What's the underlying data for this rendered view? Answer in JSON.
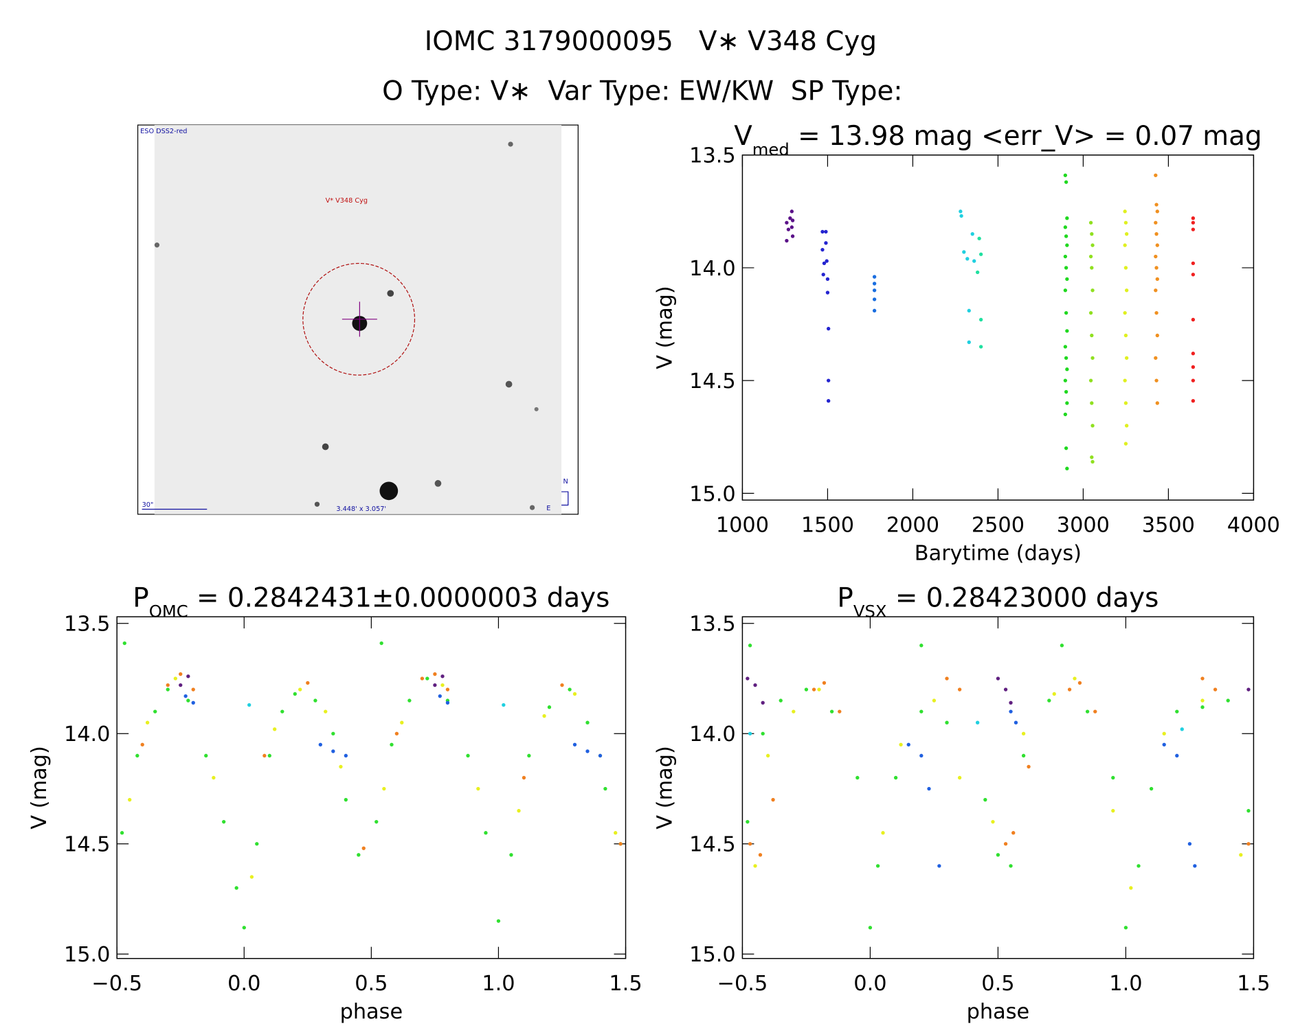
{
  "title": "IOMC 3179000095   V∗ V348 Cyg",
  "subtitle": "O Type: V∗  Var Type: EW/KW  SP Type:",
  "image": {
    "survey": "ESO DSS2-red",
    "target": "V* V348 Cyg",
    "scale": "30\"",
    "size": "3.448' x 3.057'",
    "north": "N",
    "east": "E"
  },
  "chart_data": [
    {
      "type": "scatter",
      "title_parts": [
        "V",
        "med",
        " = 13.98 mag <err_V> = 0.07 mag"
      ],
      "xlabel": "Barytime (days)",
      "ylabel": "V (mag)",
      "xlim": [
        1000,
        4000
      ],
      "ylim": [
        15.03,
        13.5
      ],
      "xticks": [
        1000,
        1500,
        2000,
        2500,
        3000,
        3500,
        4000
      ],
      "yticks": [
        13.5,
        {
          "value": 14,
          "label": "14.0"
        },
        14.5,
        {
          "value": 15,
          "label": "15.0"
        }
      ],
      "series": [
        {
          "color": "#5a1088",
          "x": [
            1260,
            1260,
            1270,
            1280,
            1290,
            1290,
            1295,
            1295
          ],
          "values": [
            13.8,
            13.88,
            13.83,
            13.78,
            13.75,
            13.82,
            13.86,
            13.79
          ]
        },
        {
          "color": "#2424d0",
          "x": [
            1470,
            1470,
            1475,
            1480,
            1490,
            1490,
            1495,
            1500,
            1500,
            1505,
            1505,
            1505
          ],
          "values": [
            13.84,
            13.92,
            14.03,
            13.98,
            13.84,
            13.89,
            13.97,
            14.05,
            14.11,
            14.27,
            14.5,
            14.59
          ]
        },
        {
          "color": "#1a6ee0",
          "x": [
            1775,
            1775,
            1775,
            1775,
            1775
          ],
          "values": [
            14.04,
            14.07,
            14.1,
            14.14,
            14.19
          ]
        },
        {
          "color": "#20d0e0",
          "x": [
            2280,
            2285,
            2300,
            2320,
            2330,
            2330,
            2350,
            2360
          ],
          "values": [
            13.75,
            13.77,
            13.93,
            13.96,
            14.19,
            14.33,
            13.85,
            13.97
          ]
        },
        {
          "color": "#20e0a0",
          "x": [
            2380,
            2390,
            2400,
            2400,
            2400
          ],
          "values": [
            14.02,
            13.87,
            13.94,
            14.23,
            14.35
          ]
        },
        {
          "color": "#20d820",
          "x": [
            2895,
            2900,
            2905,
            2895,
            2900,
            2905,
            2895,
            2900,
            2905,
            2895,
            2900,
            2905,
            2895,
            2900,
            2905,
            2895,
            2900,
            2905,
            2895,
            2900,
            2905
          ],
          "values": [
            13.59,
            13.62,
            13.78,
            13.82,
            13.86,
            13.9,
            13.95,
            14.0,
            14.05,
            14.1,
            14.2,
            14.28,
            14.35,
            14.4,
            14.45,
            14.5,
            14.55,
            14.6,
            14.65,
            14.8,
            14.89
          ]
        },
        {
          "color": "#90e020",
          "x": [
            3045,
            3050,
            3055,
            3045,
            3050,
            3055,
            3045,
            3050,
            3055,
            3045,
            3050,
            3055,
            3050,
            3055
          ],
          "values": [
            13.8,
            13.85,
            13.9,
            13.95,
            14.0,
            14.1,
            14.2,
            14.3,
            14.4,
            14.5,
            14.6,
            14.7,
            14.84,
            14.86
          ]
        },
        {
          "color": "#e0f020",
          "x": [
            3245,
            3250,
            3255,
            3245,
            3250,
            3255,
            3245,
            3250,
            3255,
            3245,
            3250,
            3255,
            3250
          ],
          "values": [
            13.75,
            13.8,
            13.85,
            13.9,
            14.0,
            14.1,
            14.2,
            14.3,
            14.4,
            14.5,
            14.6,
            14.7,
            14.78
          ]
        },
        {
          "color": "#f09020",
          "x": [
            3425,
            3430,
            3435,
            3425,
            3430,
            3435,
            3425,
            3430,
            3435,
            3425,
            3430,
            3435,
            3425,
            3430,
            3435
          ],
          "values": [
            13.59,
            13.72,
            13.75,
            13.8,
            13.85,
            13.9,
            13.95,
            14.0,
            14.05,
            14.1,
            14.2,
            14.3,
            14.4,
            14.5,
            14.6
          ]
        },
        {
          "color": "#f02020",
          "x": [
            3645,
            3645,
            3645,
            3645,
            3645,
            3645,
            3645,
            3645,
            3645,
            3645
          ],
          "values": [
            13.78,
            13.8,
            13.83,
            13.98,
            14.03,
            14.23,
            14.38,
            14.44,
            14.5,
            14.59
          ]
        }
      ]
    },
    {
      "type": "scatter",
      "title_parts": [
        "P",
        "OMC",
        " = 0.2842431±0.0000003 days"
      ],
      "xlabel": "phase",
      "ylabel": "V (mag)",
      "xlim": [
        -0.5,
        1.5
      ],
      "ylim": [
        15.02,
        13.47
      ],
      "xticks": [
        {
          "value": -0.5,
          "label": "−0.5"
        },
        {
          "value": 0,
          "label": "0.0"
        },
        0.5,
        {
          "value": 1,
          "label": "1.0"
        },
        1.5
      ],
      "yticks": [
        13.5,
        {
          "value": 14,
          "label": "14.0"
        },
        14.5,
        {
          "value": 15,
          "label": "15.0"
        }
      ],
      "series": [
        {
          "color": "#30e030",
          "x": [
            -0.48,
            -0.42,
            -0.35,
            -0.3,
            -0.22,
            -0.15,
            -0.08,
            -0.03,
            0,
            0.05,
            0.1,
            0.15,
            0.2,
            0.28,
            0.35,
            0.4,
            0.45,
            0.52,
            0.58,
            0.65,
            0.72,
            0.8,
            0.88,
            0.95,
            1,
            1.05,
            1.12,
            1.2,
            1.28,
            1.35,
            1.42,
            1.48,
            -0.47,
            0.54
          ],
          "values": [
            14.45,
            14.1,
            13.9,
            13.8,
            13.85,
            14.1,
            14.4,
            14.7,
            14.88,
            14.5,
            14.1,
            13.9,
            13.82,
            13.85,
            14,
            14.3,
            14.55,
            14.4,
            14.05,
            13.85,
            13.75,
            13.85,
            14.1,
            14.45,
            14.85,
            14.55,
            14.1,
            13.88,
            13.8,
            13.95,
            14.25,
            14.5,
            13.59,
            13.59
          ]
        },
        {
          "color": "#e8f020",
          "x": [
            -0.45,
            -0.38,
            -0.27,
            -0.12,
            0.03,
            0.12,
            0.22,
            0.32,
            0.38,
            0.55,
            0.62,
            0.78,
            0.92,
            1.08,
            1.18,
            1.3,
            1.4,
            1.46
          ],
          "values": [
            14.3,
            13.95,
            13.75,
            14.2,
            14.65,
            13.98,
            13.8,
            13.9,
            14.15,
            14.25,
            13.95,
            13.78,
            14.25,
            14.35,
            13.92,
            13.82,
            14.1,
            14.45
          ]
        },
        {
          "color": "#f08020",
          "x": [
            -0.4,
            -0.3,
            -0.25,
            -0.2,
            0.08,
            0.25,
            0.47,
            0.6,
            0.7,
            0.75,
            0.8,
            1.1,
            1.25,
            1.48
          ],
          "values": [
            14.05,
            13.78,
            13.73,
            13.8,
            14.1,
            13.77,
            14.52,
            14,
            13.75,
            13.73,
            13.8,
            14.2,
            13.78,
            14.5
          ]
        },
        {
          "color": "#2060e0",
          "x": [
            -0.23,
            -0.2,
            0.3,
            0.35,
            0.4,
            0.77,
            0.8,
            1.3,
            1.35,
            1.4
          ],
          "values": [
            13.83,
            13.86,
            14.05,
            14.08,
            14.1,
            13.83,
            13.86,
            14.05,
            14.08,
            14.1
          ]
        },
        {
          "color": "#602080",
          "x": [
            -0.25,
            -0.22,
            0.75,
            0.78
          ],
          "values": [
            13.78,
            13.74,
            13.78,
            13.74
          ]
        },
        {
          "color": "#20d0e0",
          "x": [
            0.02,
            1.02
          ],
          "values": [
            13.87,
            13.87
          ]
        }
      ]
    },
    {
      "type": "scatter",
      "title_parts": [
        "P",
        "VSX",
        " = 0.28423000 days"
      ],
      "xlabel": "phase",
      "ylabel": "V (mag)",
      "xlim": [
        -0.5,
        1.5
      ],
      "ylim": [
        15.02,
        13.47
      ],
      "xticks": [
        {
          "value": -0.5,
          "label": "−0.5"
        },
        {
          "value": 0,
          "label": "0.0"
        },
        0.5,
        {
          "value": 1,
          "label": "1.0"
        },
        1.5
      ],
      "yticks": [
        13.5,
        {
          "value": 14,
          "label": "14.0"
        },
        14.5,
        {
          "value": 15,
          "label": "15.0"
        }
      ],
      "series": [
        {
          "color": "#30e030",
          "x": [
            -0.48,
            -0.42,
            -0.35,
            -0.25,
            -0.15,
            -0.05,
            0,
            0.03,
            0.1,
            0.2,
            0.3,
            0.45,
            0.5,
            0.55,
            0.6,
            0.7,
            0.75,
            0.85,
            0.95,
            1,
            1.05,
            1.1,
            1.2,
            1.3,
            1.4,
            1.48,
            -0.47,
            0.2
          ],
          "values": [
            14.4,
            14,
            13.85,
            13.8,
            13.9,
            14.2,
            14.88,
            14.6,
            14.2,
            13.9,
            13.95,
            14.3,
            14.55,
            14.6,
            14.1,
            13.85,
            13.6,
            13.9,
            14.2,
            14.88,
            14.6,
            14.25,
            13.9,
            13.88,
            13.85,
            14.35,
            13.6,
            13.6
          ]
        },
        {
          "color": "#e8f020",
          "x": [
            -0.45,
            -0.4,
            -0.3,
            -0.2,
            0.05,
            0.12,
            0.25,
            0.35,
            0.48,
            0.6,
            0.72,
            0.8,
            0.95,
            1.02,
            1.15,
            1.3,
            1.45
          ],
          "values": [
            14.6,
            14.1,
            13.9,
            13.8,
            14.45,
            14.05,
            13.85,
            14.2,
            14.4,
            14,
            13.82,
            13.75,
            14.35,
            14.7,
            14,
            13.85,
            14.55
          ]
        },
        {
          "color": "#f08020",
          "x": [
            -0.47,
            -0.43,
            -0.38,
            -0.22,
            -0.18,
            -0.12,
            0.3,
            0.35,
            0.53,
            0.56,
            0.62,
            0.78,
            0.82,
            0.88,
            1.3,
            1.35,
            1.48
          ],
          "values": [
            14.5,
            14.55,
            14.3,
            13.8,
            13.77,
            13.9,
            13.75,
            13.8,
            14.5,
            14.45,
            14.15,
            13.8,
            13.77,
            13.9,
            13.75,
            13.8,
            14.5
          ]
        },
        {
          "color": "#2060e0",
          "x": [
            0.15,
            0.2,
            0.23,
            0.27,
            0.55,
            0.57,
            1.15,
            1.2,
            1.25,
            1.27
          ],
          "values": [
            14.05,
            14.1,
            14.25,
            14.6,
            13.9,
            13.95,
            14.05,
            14.1,
            14.5,
            14.6
          ]
        },
        {
          "color": "#602080",
          "x": [
            -0.48,
            -0.45,
            -0.42,
            0.5,
            0.53,
            0.55,
            1.48
          ],
          "values": [
            13.75,
            13.78,
            13.86,
            13.75,
            13.8,
            13.86,
            13.8
          ]
        },
        {
          "color": "#20d0e0",
          "x": [
            0.42,
            1.22,
            -0.47
          ],
          "values": [
            13.95,
            13.98,
            14
          ]
        }
      ]
    }
  ]
}
